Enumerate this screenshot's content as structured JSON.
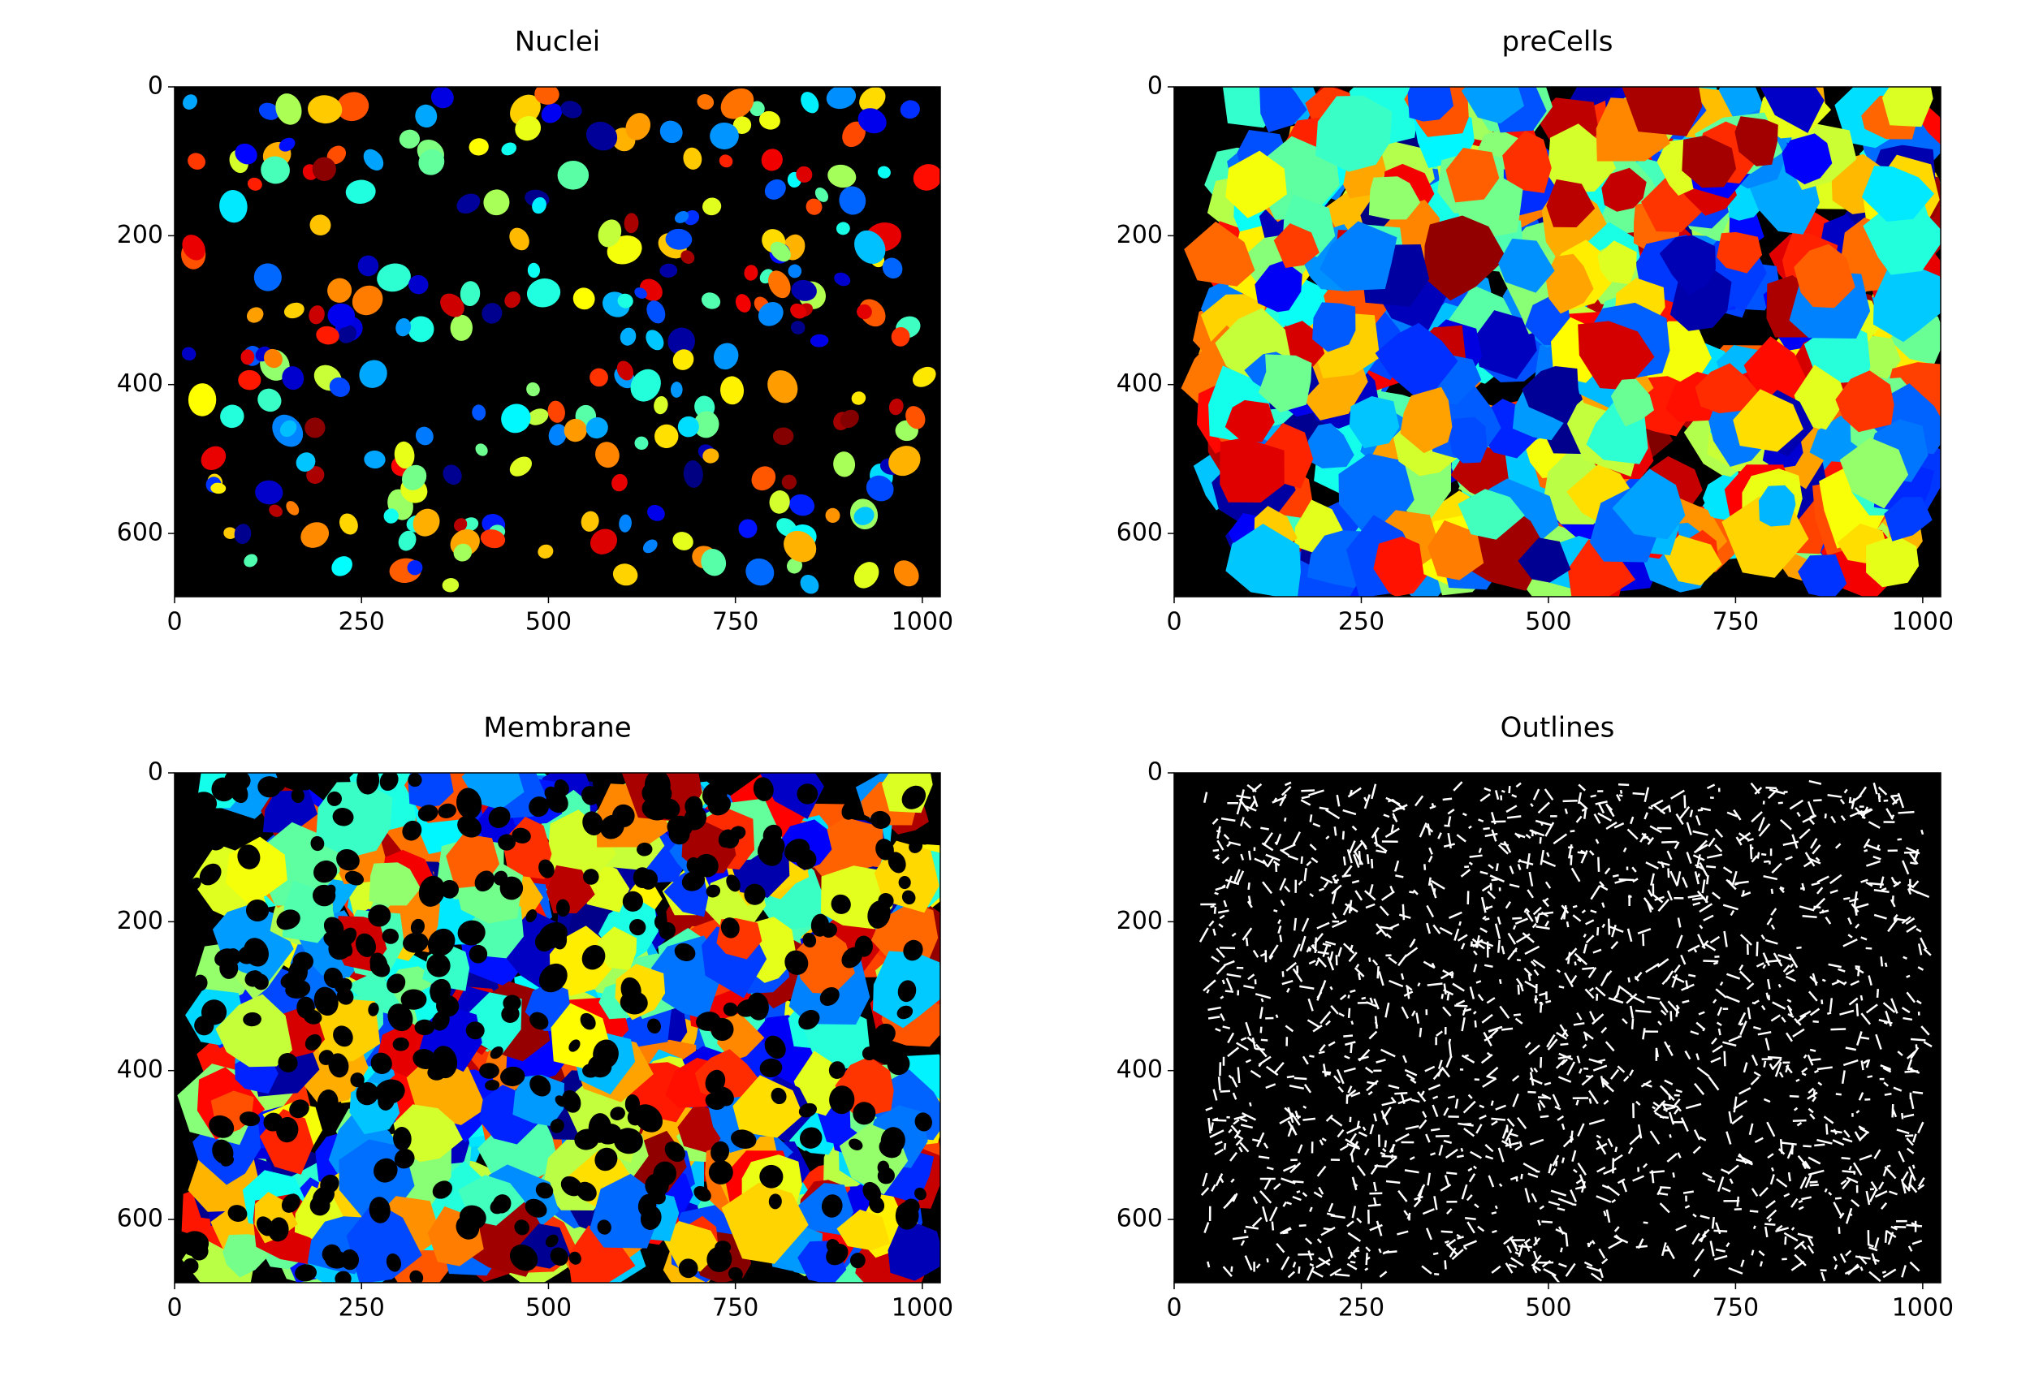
{
  "chart_data": [
    {
      "type": "image",
      "title": "Nuclei",
      "colormap": "jet",
      "content": "nuclei",
      "xlim": [
        0,
        1024
      ],
      "ylim": [
        685,
        0
      ],
      "xticks": [
        0,
        250,
        500,
        750,
        1000
      ],
      "yticks": [
        0,
        200,
        400,
        600
      ]
    },
    {
      "type": "image",
      "title": "preCells",
      "colormap": "jet",
      "content": "cells",
      "xlim": [
        0,
        1024
      ],
      "ylim": [
        685,
        0
      ],
      "xticks": [
        0,
        250,
        500,
        750,
        1000
      ],
      "yticks": [
        0,
        200,
        400,
        600
      ]
    },
    {
      "type": "image",
      "title": "Membrane",
      "colormap": "jet",
      "content": "membrane",
      "xlim": [
        0,
        1024
      ],
      "ylim": [
        685,
        0
      ],
      "xticks": [
        0,
        250,
        500,
        750,
        1000
      ],
      "yticks": [
        0,
        200,
        400,
        600
      ]
    },
    {
      "type": "image",
      "title": "Outlines",
      "colormap": "gray",
      "content": "outlines",
      "xlim": [
        0,
        1024
      ],
      "ylim": [
        685,
        0
      ],
      "xticks": [
        0,
        250,
        500,
        750,
        1000
      ],
      "yticks": [
        0,
        200,
        400,
        600
      ]
    }
  ]
}
